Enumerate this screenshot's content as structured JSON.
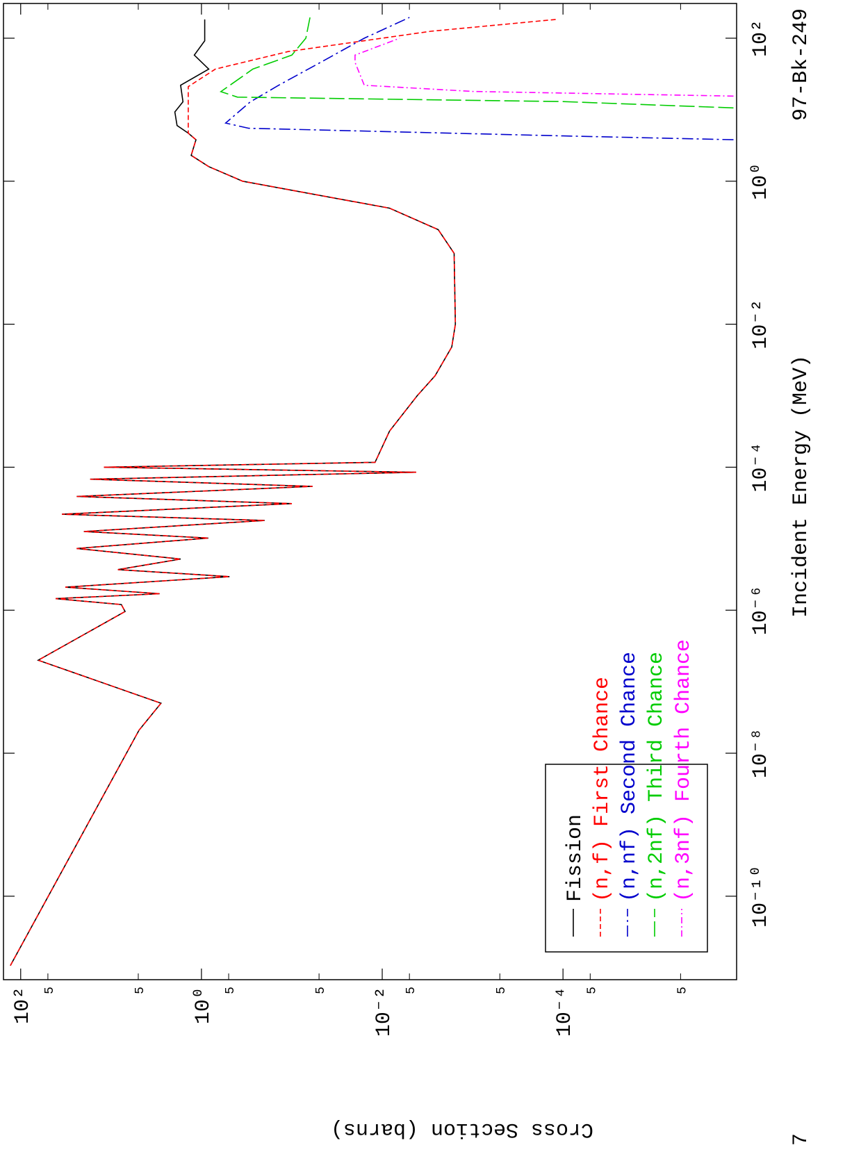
{
  "chart_data": {
    "type": "line",
    "xlabel": "Incident Energy (MeV)",
    "ylabel": "Cross Section (barns)",
    "annotations": [
      "97-Bk-249",
      "7"
    ],
    "xscale": "log",
    "yscale": "log",
    "xlim": [
      6.8e-12,
      306
    ],
    "ylim": [
      1.2e-06,
      155
    ],
    "xticks": [
      {
        "value": 1e-10,
        "label": "10⁻¹⁰"
      },
      {
        "value": 1e-08,
        "label": "10⁻⁸"
      },
      {
        "value": 1e-06,
        "label": "10⁻⁶"
      },
      {
        "value": 0.0001,
        "label": "10⁻⁴"
      },
      {
        "value": 0.01,
        "label": "10⁻²"
      },
      {
        "value": 1,
        "label": "10⁰"
      },
      {
        "value": 100,
        "label": "10²"
      }
    ],
    "yticks": [
      {
        "value": 100,
        "label": "10²"
      },
      {
        "value": 1,
        "label": "10⁰"
      },
      {
        "value": 0.01,
        "label": "10⁻²"
      },
      {
        "value": 0.0001,
        "label": "10⁻⁴"
      }
    ],
    "yminorticks": [
      {
        "value": 50,
        "label": "5"
      },
      {
        "value": 5,
        "label": "5"
      },
      {
        "value": 0.5,
        "label": "5"
      },
      {
        "value": 0.05,
        "label": "5"
      },
      {
        "value": 0.005,
        "label": "5"
      },
      {
        "value": 0.0005,
        "label": "5"
      },
      {
        "value": 5e-05,
        "label": "5"
      },
      {
        "value": 5e-06,
        "label": "5"
      }
    ],
    "legend": "lower left",
    "series": [
      {
        "name": "Fission",
        "color": "#000000",
        "x": [
          1.07e-11,
          2.1e-08,
          5e-08,
          2e-07,
          9.6e-07,
          1.2e-06,
          1.45e-06,
          1.7e-06,
          2.1e-06,
          2.95e-06,
          3.7e-06,
          5.2e-06,
          7.3e-06,
          1.02e-05,
          1.26e-05,
          1.8e-05,
          2.2e-05,
          3.1e-05,
          3.9e-05,
          5.4e-05,
          6.8e-05,
          8.5e-05,
          0.0001,
          0.000117,
          0.00032,
          0.001,
          0.0019,
          0.0048,
          0.01,
          0.098,
          0.21,
          0.42,
          1.0,
          1.6,
          2.3,
          3.8,
          4.7,
          6,
          9.3,
          12.9,
          22,
          37,
          58,
          92,
          183
        ],
        "values": [
          130,
          4.9,
          2.8,
          64,
          7,
          7.7,
          41,
          2.9,
          32,
          0.49,
          8.4,
          1.7,
          24,
          0.84,
          20,
          0.2,
          35,
          0.1,
          24,
          0.059,
          17,
          0.0042,
          12,
          0.012,
          0.0083,
          0.0041,
          0.0026,
          0.0017,
          0.00155,
          0.0016,
          0.0024,
          0.0083,
          0.35,
          0.83,
          1.3,
          1.15,
          1.4,
          1.86,
          1.97,
          1.6,
          1.7,
          0.83,
          1.2,
          0.92,
          0.92
        ]
      },
      {
        "name": "(n,f) First Chance",
        "color": "#ff0000",
        "x": [
          1.07e-11,
          2.1e-08,
          5e-08,
          2e-07,
          9.6e-07,
          1.2e-06,
          1.45e-06,
          1.7e-06,
          2.1e-06,
          2.95e-06,
          3.7e-06,
          5.2e-06,
          7.3e-06,
          1.02e-05,
          1.26e-05,
          1.8e-05,
          2.2e-05,
          3.1e-05,
          3.9e-05,
          5.4e-05,
          6.8e-05,
          8.5e-05,
          0.0001,
          0.000117,
          0.00032,
          0.001,
          0.0019,
          0.0048,
          0.01,
          0.098,
          0.21,
          0.42,
          1.0,
          1.6,
          2.3,
          3.8,
          4.7,
          7.6,
          21,
          37,
          65,
          125,
          183
        ],
        "values": [
          130,
          4.9,
          2.8,
          64,
          7,
          7.7,
          41,
          2.9,
          32,
          0.49,
          8.4,
          1.7,
          24,
          0.84,
          20,
          0.2,
          35,
          0.1,
          24,
          0.059,
          17,
          0.0042,
          12,
          0.012,
          0.0083,
          0.0041,
          0.0026,
          0.0017,
          0.00155,
          0.0016,
          0.0024,
          0.0083,
          0.35,
          0.83,
          1.3,
          1.15,
          1.4,
          1.4,
          1.4,
          0.7,
          0.11,
          0.0029,
          0.00012
        ]
      },
      {
        "name": "(n,nf) Second Chance",
        "color": "#0000cc",
        "x": [
          3.8,
          4.3,
          5.5,
          6.5,
          12.8,
          22,
          46,
          100,
          195
        ],
        "values": [
          1.3e-06,
          0.0001,
          0.3,
          0.54,
          0.29,
          0.14,
          0.048,
          0.0158,
          0.005
        ]
      },
      {
        "name": "(n,2nf) Third Chance",
        "color": "#00cc00",
        "x": [
          10.6,
          13,
          15,
          17.9,
          37,
          58,
          100,
          195
        ],
        "values": [
          1.3e-06,
          0.0001,
          0.4,
          0.61,
          0.27,
          0.1,
          0.07,
          0.063
        ]
      },
      {
        "name": "(n,3nf) Fourth Chance",
        "color": "#ff00ff",
        "x": [
          15.5,
          18,
          22,
          46,
          58,
          100
        ],
        "values": [
          1.3e-06,
          0.001,
          0.0158,
          0.02,
          0.02,
          0.0064
        ]
      }
    ]
  }
}
